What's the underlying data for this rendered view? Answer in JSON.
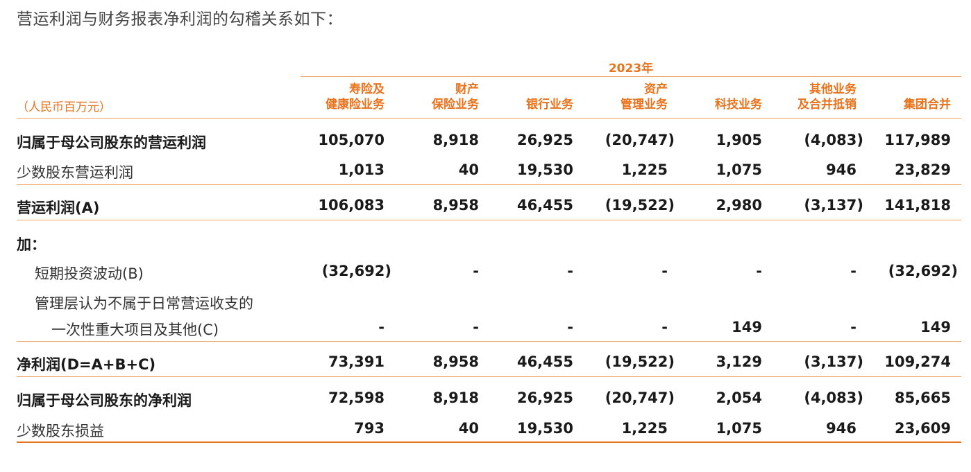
{
  "intro": "营运利润与财务报表净利润的勾稽关系如下：",
  "year": "2023年",
  "unit": "（人民币百万元）",
  "columns": [
    {
      "line1": "寿险及",
      "line2": "健康险业务"
    },
    {
      "line1": "财产",
      "line2": "保险业务"
    },
    {
      "line1": "",
      "line2": "银行业务"
    },
    {
      "line1": "资产",
      "line2": "管理业务"
    },
    {
      "line1": "",
      "line2": "科技业务"
    },
    {
      "line1": "其他业务",
      "line2": "及合并抵销"
    },
    {
      "line1": "",
      "line2": "集团合并"
    }
  ],
  "rows": [
    {
      "label": "归属于母公司股东的营运利润",
      "values": [
        "105,070",
        "8,918",
        "26,925",
        "(20,747)",
        "1,905",
        "(4,083)",
        "117,989"
      ]
    },
    {
      "label": "少数股东营运利润",
      "values": [
        "1,013",
        "40",
        "19,530",
        "1,225",
        "1,075",
        "946",
        "23,829"
      ]
    },
    {
      "label": "营运利润(A)",
      "values": [
        "106,083",
        "8,958",
        "46,455",
        "(19,522)",
        "2,980",
        "(3,137)",
        "141,818"
      ]
    },
    {
      "label": "加：",
      "values": []
    },
    {
      "label": "短期投资波动(B)",
      "values": [
        "(32,692)",
        "-",
        "-",
        "-",
        "-",
        "-",
        "(32,692)"
      ]
    },
    {
      "label": "管理层认为不属于日常营运收支的",
      "values": []
    },
    {
      "label": "一次性重大项目及其他(C)",
      "values": [
        "-",
        "-",
        "-",
        "-",
        "149",
        "-",
        "149"
      ]
    },
    {
      "label": "净利润(D=A+B+C)",
      "values": [
        "73,391",
        "8,958",
        "46,455",
        "(19,522)",
        "3,129",
        "(3,137)",
        "109,274"
      ]
    },
    {
      "label": "归属于母公司股东的净利润",
      "values": [
        "72,598",
        "8,918",
        "26,925",
        "(20,747)",
        "2,054",
        "(4,083)",
        "85,665"
      ]
    },
    {
      "label": "少数股东损益",
      "values": [
        "793",
        "40",
        "19,530",
        "1,225",
        "1,075",
        "946",
        "23,609"
      ]
    }
  ]
}
